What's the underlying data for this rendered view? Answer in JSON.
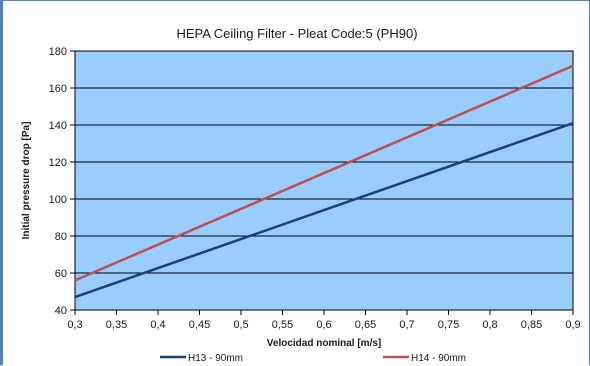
{
  "chart_data": {
    "type": "line",
    "title": "HEPA Ceiling Filter - Pleat Code:5 (PH90)",
    "xlabel": "Velocidad nominal [m/s]",
    "ylabel": "Initial pressure drop [Pa]",
    "xlim": [
      0.3,
      0.9
    ],
    "ylim": [
      40,
      180
    ],
    "x_ticks": [
      "0,3",
      "0,35",
      "0,4",
      "0,45",
      "0,5",
      "0,55",
      "0,6",
      "0,65",
      "0,7",
      "0,75",
      "0,8",
      "0,85",
      "0,9"
    ],
    "y_ticks": [
      "40",
      "60",
      "80",
      "100",
      "120",
      "140",
      "160",
      "180"
    ],
    "grid": "horizontal",
    "plot_background": "#99ccff",
    "legend_position": "bottom",
    "series": [
      {
        "name": "H13 - 90mm",
        "color": "#1f3f7a",
        "x": [
          0.3,
          0.9
        ],
        "y": [
          47,
          141
        ]
      },
      {
        "name": "H14 - 90mm",
        "color": "#c0504d",
        "x": [
          0.3,
          0.9
        ],
        "y": [
          56,
          172
        ]
      }
    ]
  }
}
